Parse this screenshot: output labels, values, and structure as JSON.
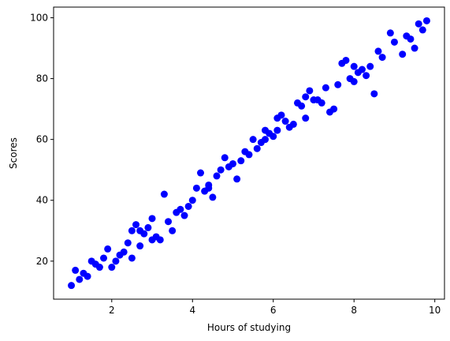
{
  "chart_data": {
    "type": "scatter",
    "title": "",
    "xlabel": "Hours of studying",
    "ylabel": "Scores",
    "xlim": [
      0.56,
      10.24
    ],
    "ylim": [
      7.5,
      103.5
    ],
    "xticks": [
      2,
      4,
      6,
      8,
      10
    ],
    "yticks": [
      20,
      40,
      60,
      80,
      100
    ],
    "xtick_labels": [
      "2",
      "4",
      "6",
      "8",
      "10"
    ],
    "ytick_labels": [
      "20",
      "40",
      "60",
      "80",
      "100"
    ],
    "grid": false,
    "legend": "none",
    "marker_color": "#0000ff",
    "series": [
      {
        "x": [
          1.0,
          1.1,
          1.2,
          1.3,
          1.4,
          1.5,
          1.6,
          1.7,
          1.8,
          1.9,
          2.0,
          2.1,
          2.2,
          2.3,
          2.4,
          2.5,
          2.5,
          2.6,
          2.7,
          2.7,
          2.8,
          2.9,
          3.0,
          3.0,
          3.1,
          3.2,
          3.3,
          3.4,
          3.5,
          3.6,
          3.7,
          3.8,
          3.9,
          4.0,
          4.1,
          4.2,
          4.3,
          4.4,
          4.4,
          4.5,
          4.6,
          4.7,
          4.8,
          4.9,
          5.0,
          5.1,
          5.2,
          5.3,
          5.4,
          5.5,
          5.6,
          5.7,
          5.8,
          5.8,
          5.9,
          6.0,
          6.1,
          6.1,
          6.2,
          6.3,
          6.4,
          6.5,
          6.6,
          6.7,
          6.8,
          6.8,
          6.9,
          7.0,
          7.1,
          7.2,
          7.3,
          7.4,
          7.5,
          7.6,
          7.7,
          7.8,
          7.9,
          8.0,
          8.0,
          8.1,
          8.2,
          8.3,
          8.4,
          8.5,
          8.6,
          8.7,
          8.9,
          9.0,
          9.2,
          9.3,
          9.4,
          9.5,
          9.6,
          9.7,
          9.8
        ],
        "y": [
          12,
          17,
          14,
          16,
          15,
          20,
          19,
          18,
          21,
          24,
          18,
          20,
          22,
          23,
          26,
          30,
          21,
          32,
          25,
          30,
          29,
          31,
          34,
          27,
          28,
          27,
          42,
          33,
          30,
          36,
          37,
          35,
          38,
          40,
          44,
          49,
          43,
          45,
          44,
          41,
          48,
          50,
          54,
          51,
          52,
          47,
          53,
          56,
          55,
          60,
          57,
          59,
          60,
          63,
          62,
          61,
          63,
          67,
          68,
          66,
          64,
          65,
          72,
          71,
          74,
          67,
          76,
          73,
          73,
          72,
          77,
          69,
          70,
          78,
          85,
          86,
          80,
          84,
          79,
          82,
          83,
          81,
          84,
          75,
          89,
          87,
          95,
          92,
          88,
          94,
          93,
          90,
          98,
          96,
          99
        ]
      }
    ]
  }
}
